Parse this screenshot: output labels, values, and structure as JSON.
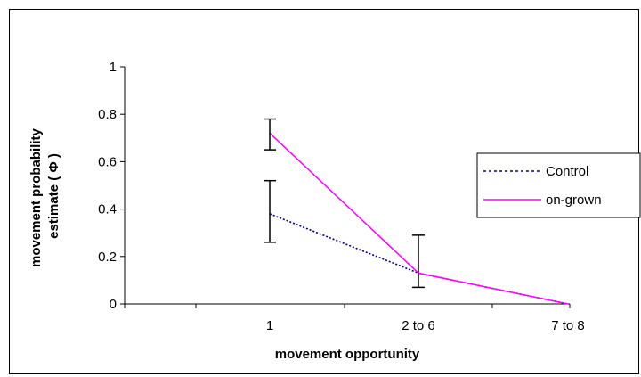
{
  "chart_data": {
    "type": "line",
    "categories": [
      "1",
      "2 to 6",
      "7 to 8"
    ],
    "xlabel": "movement opportunity",
    "ylabel_lines": [
      "movement probability",
      "estimate ( Φ )"
    ],
    "ylim": [
      0,
      1
    ],
    "yticks": [
      "0",
      "0.2",
      "0.4",
      "0.6",
      "0.8",
      "1"
    ],
    "grid": false,
    "legend_position": "right",
    "series": [
      {
        "name": "Control",
        "style": "dotted",
        "color": "#000080",
        "values": [
          0.38,
          0.13,
          0.0
        ],
        "error_low": [
          0.26,
          0.07,
          0.0
        ],
        "error_high": [
          0.52,
          0.29,
          0.0
        ]
      },
      {
        "name": "on-grown",
        "style": "solid",
        "color": "#ff00ff",
        "values": [
          0.72,
          0.13,
          0.0
        ],
        "error_low": [
          0.65,
          null,
          null
        ],
        "error_high": [
          0.78,
          null,
          null
        ]
      }
    ]
  }
}
